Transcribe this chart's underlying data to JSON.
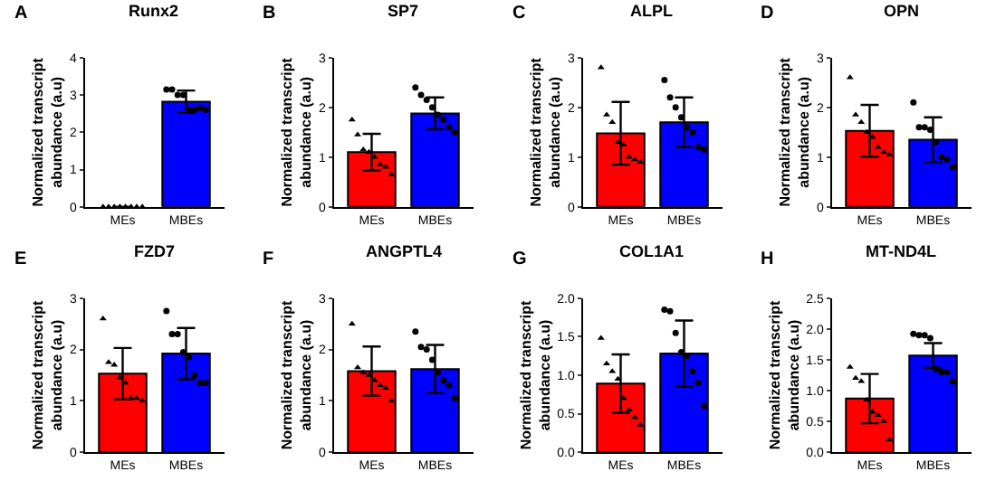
{
  "chart_data": [
    {
      "type": "bar",
      "title": "Runx2",
      "ylabel": "Normalized transcript abundance (a.u)",
      "annotations": [
        "A"
      ],
      "categories": [
        "MEs",
        "MBEs"
      ],
      "ylim": [
        0,
        4
      ],
      "yticks": [
        0,
        1,
        2,
        3,
        4
      ],
      "grid": false,
      "series": [
        {
          "values": [
            0,
            2.82
          ],
          "colors": [
            "#ff0000",
            "#0000ff"
          ],
          "errors": [
            0,
            0.3
          ]
        },
        {
          "type": "scatter",
          "marker": "triangle",
          "color": "#000000",
          "x": [
            "MEs",
            "MEs",
            "MEs",
            "MEs",
            "MEs",
            "MEs",
            "MEs",
            "MEs"
          ],
          "values": [
            0,
            0,
            0,
            0,
            0,
            0,
            0,
            0
          ]
        },
        {
          "type": "scatter",
          "marker": "circle",
          "color": "#000000",
          "x": [
            "MBEs",
            "MBEs",
            "MBEs",
            "MBEs",
            "MBEs",
            "MBEs",
            "MBEs",
            "MBEs"
          ],
          "values": [
            3.15,
            3.15,
            3.0,
            3.0,
            2.6,
            2.6,
            2.65,
            2.6
          ]
        }
      ]
    },
    {
      "type": "bar",
      "title": "SP7",
      "ylabel": "Normalized transcript abundance (a.u)",
      "annotations": [
        "B"
      ],
      "categories": [
        "MEs",
        "MBEs"
      ],
      "ylim": [
        0,
        3
      ],
      "yticks": [
        0,
        1,
        2,
        3
      ],
      "grid": false,
      "series": [
        {
          "values": [
            1.1,
            1.88
          ],
          "colors": [
            "#ff0000",
            "#0000ff"
          ],
          "errors": [
            0.37,
            0.32
          ]
        },
        {
          "type": "scatter",
          "marker": "triangle",
          "color": "#000000",
          "x": [
            "MEs",
            "MEs",
            "MEs",
            "MEs",
            "MEs",
            "MEs",
            "MEs",
            "MEs"
          ],
          "values": [
            1.75,
            1.45,
            1.15,
            1.1,
            1.0,
            0.85,
            0.8,
            0.65
          ]
        },
        {
          "type": "scatter",
          "marker": "circle",
          "color": "#000000",
          "x": [
            "MBEs",
            "MBEs",
            "MBEs",
            "MBEs",
            "MBEs",
            "MBEs",
            "MBEs",
            "MBEs"
          ],
          "values": [
            2.4,
            2.25,
            2.15,
            2.0,
            1.85,
            1.75,
            1.6,
            1.5
          ]
        }
      ]
    },
    {
      "type": "bar",
      "title": "ALPL",
      "ylabel": "Normalized transcript abundance (a.u)",
      "annotations": [
        "C"
      ],
      "categories": [
        "MEs",
        "MBEs"
      ],
      "ylim": [
        0,
        3
      ],
      "yticks": [
        0,
        1,
        2,
        3
      ],
      "grid": false,
      "series": [
        {
          "values": [
            1.48,
            1.7
          ],
          "colors": [
            "#ff0000",
            "#0000ff"
          ],
          "errors": [
            0.63,
            0.5
          ]
        },
        {
          "type": "scatter",
          "marker": "triangle",
          "color": "#000000",
          "x": [
            "MEs",
            "MEs",
            "MEs",
            "MEs",
            "MEs",
            "MEs",
            "MEs",
            "MEs"
          ],
          "values": [
            2.8,
            1.85,
            1.7,
            1.3,
            1.25,
            1.0,
            0.95,
            0.9
          ]
        },
        {
          "type": "scatter",
          "marker": "circle",
          "color": "#000000",
          "x": [
            "MBEs",
            "MBEs",
            "MBEs",
            "MBEs",
            "MBEs",
            "MBEs",
            "MBEs",
            "MBEs"
          ],
          "values": [
            2.55,
            2.2,
            2.0,
            1.8,
            1.6,
            1.5,
            1.2,
            1.15
          ]
        }
      ]
    },
    {
      "type": "bar",
      "title": "OPN",
      "ylabel": "Normalized transcript abundance (a.u)",
      "annotations": [
        "D"
      ],
      "categories": [
        "MEs",
        "MBEs"
      ],
      "ylim": [
        0,
        3
      ],
      "yticks": [
        0,
        1,
        2,
        3
      ],
      "grid": false,
      "series": [
        {
          "values": [
            1.53,
            1.35
          ],
          "colors": [
            "#ff0000",
            "#0000ff"
          ],
          "errors": [
            0.52,
            0.45
          ]
        },
        {
          "type": "scatter",
          "marker": "triangle",
          "color": "#000000",
          "x": [
            "MEs",
            "MEs",
            "MEs",
            "MEs",
            "MEs",
            "MEs",
            "MEs",
            "MEs"
          ],
          "values": [
            2.6,
            1.85,
            1.7,
            1.5,
            1.4,
            1.2,
            1.1,
            1.05
          ]
        },
        {
          "type": "scatter",
          "marker": "circle",
          "color": "#000000",
          "x": [
            "MBEs",
            "MBEs",
            "MBEs",
            "MBEs",
            "MBEs",
            "MBEs",
            "MBEs",
            "MBEs"
          ],
          "values": [
            2.1,
            1.6,
            1.6,
            1.55,
            1.3,
            1.0,
            0.95,
            0.8
          ]
        }
      ]
    },
    {
      "type": "bar",
      "title": "FZD7",
      "ylabel": "Normalized transcript abundance (a.u)",
      "annotations": [
        "E"
      ],
      "categories": [
        "MEs",
        "MBEs"
      ],
      "ylim": [
        0,
        3
      ],
      "yticks": [
        0,
        1,
        2,
        3
      ],
      "grid": false,
      "series": [
        {
          "values": [
            1.53,
            1.92
          ],
          "colors": [
            "#ff0000",
            "#0000ff"
          ],
          "errors": [
            0.5,
            0.5
          ]
        },
        {
          "type": "scatter",
          "marker": "triangle",
          "color": "#000000",
          "x": [
            "MEs",
            "MEs",
            "MEs",
            "MEs",
            "MEs",
            "MEs",
            "MEs",
            "MEs"
          ],
          "values": [
            2.6,
            1.75,
            1.7,
            1.45,
            1.35,
            1.05,
            1.05,
            1.0
          ]
        },
        {
          "type": "scatter",
          "marker": "circle",
          "color": "#000000",
          "x": [
            "MBEs",
            "MBEs",
            "MBEs",
            "MBEs",
            "MBEs",
            "MBEs",
            "MBEs",
            "MBEs"
          ],
          "values": [
            2.75,
            2.3,
            2.3,
            1.95,
            1.85,
            1.5,
            1.35,
            1.35
          ]
        }
      ]
    },
    {
      "type": "bar",
      "title": "ANGPTL4",
      "ylabel": "Normalized transcript abundance (a.u)",
      "annotations": [
        "F"
      ],
      "categories": [
        "MEs",
        "MBEs"
      ],
      "ylim": [
        0,
        3
      ],
      "yticks": [
        0,
        1,
        2,
        3
      ],
      "grid": false,
      "series": [
        {
          "values": [
            1.58,
            1.62
          ],
          "colors": [
            "#ff0000",
            "#0000ff"
          ],
          "errors": [
            0.48,
            0.47
          ]
        },
        {
          "type": "scatter",
          "marker": "triangle",
          "color": "#000000",
          "x": [
            "MEs",
            "MEs",
            "MEs",
            "MEs",
            "MEs",
            "MEs",
            "MEs",
            "MEs"
          ],
          "values": [
            2.5,
            1.65,
            1.55,
            1.5,
            1.4,
            1.3,
            1.25,
            1.0
          ]
        },
        {
          "type": "scatter",
          "marker": "circle",
          "color": "#000000",
          "x": [
            "MBEs",
            "MBEs",
            "MBEs",
            "MBEs",
            "MBEs",
            "MBEs",
            "MBEs",
            "MBEs"
          ],
          "values": [
            2.35,
            2.05,
            2.0,
            1.8,
            1.55,
            1.4,
            1.3,
            1.05
          ]
        }
      ]
    },
    {
      "type": "bar",
      "title": "COL1A1",
      "ylabel": "Normalized transcript abundance (a.u)",
      "annotations": [
        "G"
      ],
      "categories": [
        "MEs",
        "MBEs"
      ],
      "ylim": [
        0,
        2
      ],
      "yticks": [
        {
          "value": 0,
          "label": "0.0"
        },
        0.5,
        {
          "value": 1,
          "label": "1.0"
        },
        1.5,
        {
          "value": 2,
          "label": "2.0"
        }
      ],
      "grid": false,
      "series": [
        {
          "values": [
            0.89,
            1.28
          ],
          "colors": [
            "#ff0000",
            "#0000ff"
          ],
          "errors": [
            0.38,
            0.43
          ]
        },
        {
          "type": "scatter",
          "marker": "triangle",
          "color": "#000000",
          "x": [
            "MEs",
            "MEs",
            "MEs",
            "MEs",
            "MEs",
            "MEs",
            "MEs",
            "MEs"
          ],
          "values": [
            1.48,
            1.15,
            1.05,
            0.95,
            0.7,
            0.55,
            0.45,
            0.35
          ]
        },
        {
          "type": "scatter",
          "marker": "circle",
          "color": "#000000",
          "x": [
            "MBEs",
            "MBEs",
            "MBEs",
            "MBEs",
            "MBEs",
            "MBEs",
            "MBEs",
            "MBEs"
          ],
          "values": [
            1.85,
            1.83,
            1.55,
            1.3,
            1.25,
            1.05,
            0.9,
            0.6
          ]
        }
      ]
    },
    {
      "type": "bar",
      "title": "MT-ND4L",
      "ylabel": "Normalized transcript abundance (a.u)",
      "annotations": [
        "H"
      ],
      "categories": [
        "MEs",
        "MBEs"
      ],
      "ylim": [
        0,
        2.5
      ],
      "yticks": [
        {
          "value": 0,
          "label": "0.0"
        },
        0.5,
        {
          "value": 1,
          "label": "1.0"
        },
        1.5,
        {
          "value": 2,
          "label": "2.0"
        },
        2.5
      ],
      "grid": false,
      "series": [
        {
          "values": [
            0.87,
            1.57
          ],
          "colors": [
            "#ff0000",
            "#0000ff"
          ],
          "errors": [
            0.4,
            0.2
          ]
        },
        {
          "type": "scatter",
          "marker": "triangle",
          "color": "#000000",
          "x": [
            "MEs",
            "MEs",
            "MEs",
            "MEs",
            "MEs",
            "MEs",
            "MEs",
            "MEs"
          ],
          "values": [
            1.38,
            1.2,
            1.15,
            0.85,
            0.65,
            0.6,
            0.5,
            0.2
          ]
        },
        {
          "type": "scatter",
          "marker": "circle",
          "color": "#000000",
          "x": [
            "MBEs",
            "MBEs",
            "MBEs",
            "MBEs",
            "MBEs",
            "MBEs",
            "MBEs",
            "MBEs"
          ],
          "values": [
            1.92,
            1.9,
            1.9,
            1.85,
            1.35,
            1.3,
            1.3,
            1.15
          ]
        }
      ]
    }
  ]
}
